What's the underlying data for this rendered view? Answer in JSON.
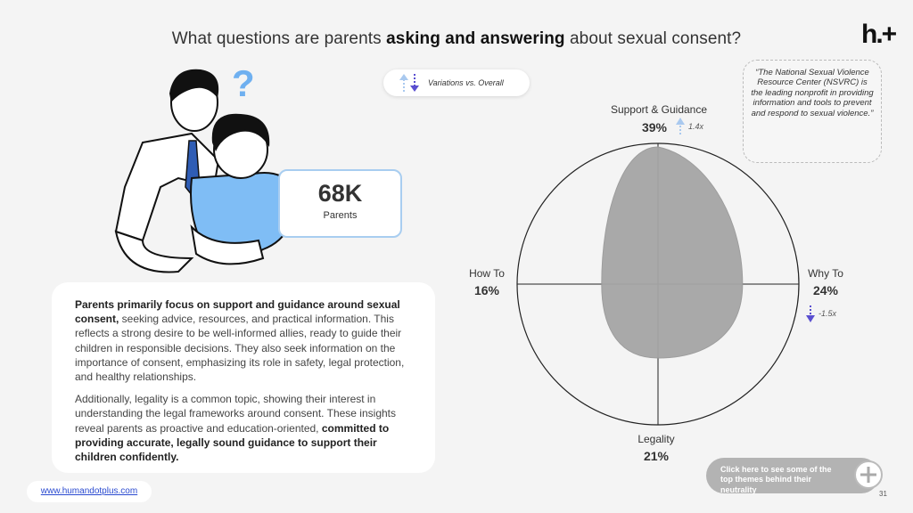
{
  "title": {
    "prefix": "What questions are parents ",
    "emph": "asking and answering",
    "suffix": " about sexual consent?"
  },
  "logo": "h.+",
  "legend": {
    "label": "Variations vs. Overall",
    "icon": "up-down-arrows-icon"
  },
  "quote": "“The National Sexual Violence Resource Center (NSVRC) is the leading nonprofit in providing information and tools to prevent and respond to sexual violence.”",
  "stat": {
    "value": "68K",
    "label": "Parents"
  },
  "body": {
    "p1_bold": "Parents primarily focus on support and guidance around sexual consent,",
    "p1_rest": " seeking advice, resources, and practical information. This reflects a strong desire to be well-informed allies, ready to guide their children in responsible decisions. They also seek information on the importance of consent, emphasizing its role in safety, legal protection, and healthy relationships.",
    "p2_rest": "Additionally, legality is a common topic, showing their interest in understanding the legal frameworks around consent. These insights reveal parents as proactive and education-oriented, ",
    "p2_bold": "committed to providing accurate, legally sound guidance to support their children confidently."
  },
  "url": "www.humandotplus.com",
  "chart_data": {
    "type": "radar",
    "axes": [
      {
        "label": "Support & Guidance",
        "value": 39,
        "display": "39%",
        "variation": "1.4x",
        "direction": "up"
      },
      {
        "label": "Why To",
        "value": 24,
        "display": "24%",
        "variation": "-1.5x",
        "direction": "down"
      },
      {
        "label": "Legality",
        "value": 21,
        "display": "21%"
      },
      {
        "label": "How To",
        "value": 16,
        "display": "16%"
      }
    ],
    "colors": {
      "fill": "#a6a6a6",
      "up": "#a9c9ef",
      "down": "#5a4fd0"
    }
  },
  "cta": "Click here to see some of the top themes behind their neutrality",
  "page_number": "31"
}
